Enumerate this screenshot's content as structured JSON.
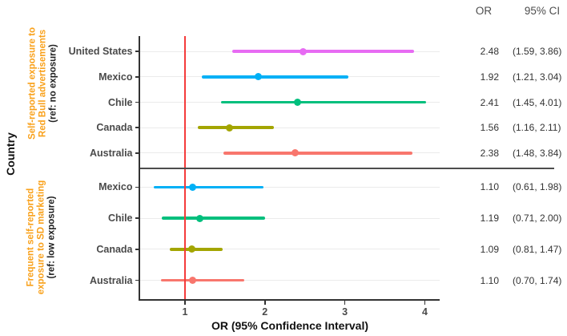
{
  "right_columns": {
    "or_header": "OR",
    "ci_header": "95% CI"
  },
  "y_axis_title": "Country",
  "x_axis_title": "OR (95% Confidence Interval)",
  "colors": {
    "reference_line": "#f43b3b",
    "divider": "#4d4d4d",
    "axis": "#333333",
    "gridline": "#ebebeb",
    "label_accent": "#f9a11b",
    "header_text": "#4d4d4d",
    "value_text": "#333333"
  },
  "chart_data": {
    "type": "scatter",
    "subtype": "forest-plot",
    "title": "",
    "xlabel": "OR (95% Confidence Interval)",
    "ylabel": "Country",
    "x_ticks": [
      1,
      2,
      3,
      4
    ],
    "xlim": [
      0.435,
      4.185
    ],
    "reference_x": 1,
    "grid": "horizontal-faint",
    "legend": "none",
    "panels": [
      {
        "label_lines": [
          "Self-reported exposure to",
          "Red Bull advertisements"
        ],
        "ref_label": "(ref: no exposure)",
        "rows": [
          {
            "country": "United States",
            "or": 2.48,
            "ci_low": 1.59,
            "ci_high": 3.86,
            "or_text": "2.48",
            "ci_text": "(1.59, 3.86)",
            "color": "#E76BF3"
          },
          {
            "country": "Mexico",
            "or": 1.92,
            "ci_low": 1.21,
            "ci_high": 3.04,
            "or_text": "1.92",
            "ci_text": "(1.21, 3.04)",
            "color": "#00B0F6"
          },
          {
            "country": "Chile",
            "or": 2.41,
            "ci_low": 1.45,
            "ci_high": 4.01,
            "or_text": "2.41",
            "ci_text": "(1.45, 4.01)",
            "color": "#00BF7D"
          },
          {
            "country": "Canada",
            "or": 1.56,
            "ci_low": 1.16,
            "ci_high": 2.11,
            "or_text": "1.56",
            "ci_text": "(1.16, 2.11)",
            "color": "#A3A500"
          },
          {
            "country": "Australia",
            "or": 2.38,
            "ci_low": 1.48,
            "ci_high": 3.84,
            "or_text": "2.38",
            "ci_text": "(1.48, 3.84)",
            "color": "#F8766D"
          }
        ]
      },
      {
        "label_lines": [
          "Frequent self-reported",
          "exposure to SD marketing"
        ],
        "ref_label": "(ref: low exposure)",
        "rows": [
          {
            "country": "Mexico",
            "or": 1.1,
            "ci_low": 0.61,
            "ci_high": 1.98,
            "or_text": "1.10",
            "ci_text": "(0.61, 1.98)",
            "color": "#00B0F6"
          },
          {
            "country": "Chile",
            "or": 1.19,
            "ci_low": 0.71,
            "ci_high": 2.0,
            "or_text": "1.19",
            "ci_text": "(0.71, 2.00)",
            "color": "#00BF7D"
          },
          {
            "country": "Canada",
            "or": 1.09,
            "ci_low": 0.81,
            "ci_high": 1.47,
            "or_text": "1.09",
            "ci_text": "(0.81, 1.47)",
            "color": "#A3A500"
          },
          {
            "country": "Australia",
            "or": 1.1,
            "ci_low": 0.7,
            "ci_high": 1.74,
            "or_text": "1.10",
            "ci_text": "(0.70, 1.74)",
            "color": "#F8766D"
          }
        ]
      }
    ]
  }
}
